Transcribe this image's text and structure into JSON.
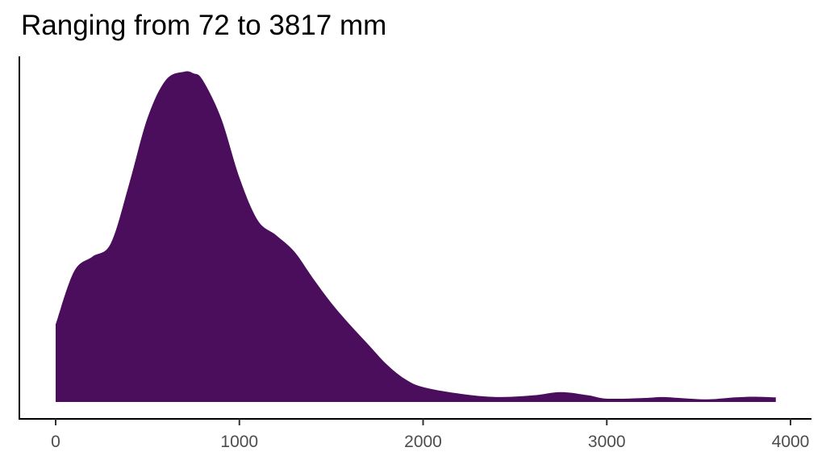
{
  "chart_data": {
    "type": "area",
    "subtype": "density",
    "title": "Ranging from 72 to 3817 mm",
    "xlabel": "",
    "ylabel": "",
    "xlim": [
      0,
      4000
    ],
    "x_ticks": [
      0,
      1000,
      2000,
      3000,
      4000
    ],
    "x_tick_labels": [
      "0",
      "1000",
      "2000",
      "3000",
      "4000"
    ],
    "y_ticks": [],
    "grid": false,
    "legend": null,
    "fill_color": "#4A0E5C",
    "x": [
      0,
      100,
      200,
      300,
      400,
      500,
      600,
      700,
      750,
      800,
      900,
      1000,
      1100,
      1200,
      1300,
      1400,
      1500,
      1600,
      1700,
      1800,
      1900,
      2000,
      2200,
      2400,
      2600,
      2750,
      2900,
      3000,
      3200,
      3300,
      3400,
      3550,
      3700,
      3800,
      3920
    ],
    "values": [
      0.235,
      0.395,
      0.44,
      0.48,
      0.66,
      0.86,
      0.975,
      1.0,
      0.995,
      0.975,
      0.86,
      0.68,
      0.55,
      0.505,
      0.455,
      0.375,
      0.3,
      0.235,
      0.175,
      0.115,
      0.07,
      0.045,
      0.025,
      0.015,
      0.02,
      0.03,
      0.02,
      0.01,
      0.012,
      0.015,
      0.012,
      0.008,
      0.014,
      0.016,
      0.014
    ]
  },
  "title": "Ranging from 72 to 3817 mm",
  "axis": {
    "x_tick_labels": [
      "0",
      "1000",
      "2000",
      "3000",
      "4000"
    ]
  }
}
